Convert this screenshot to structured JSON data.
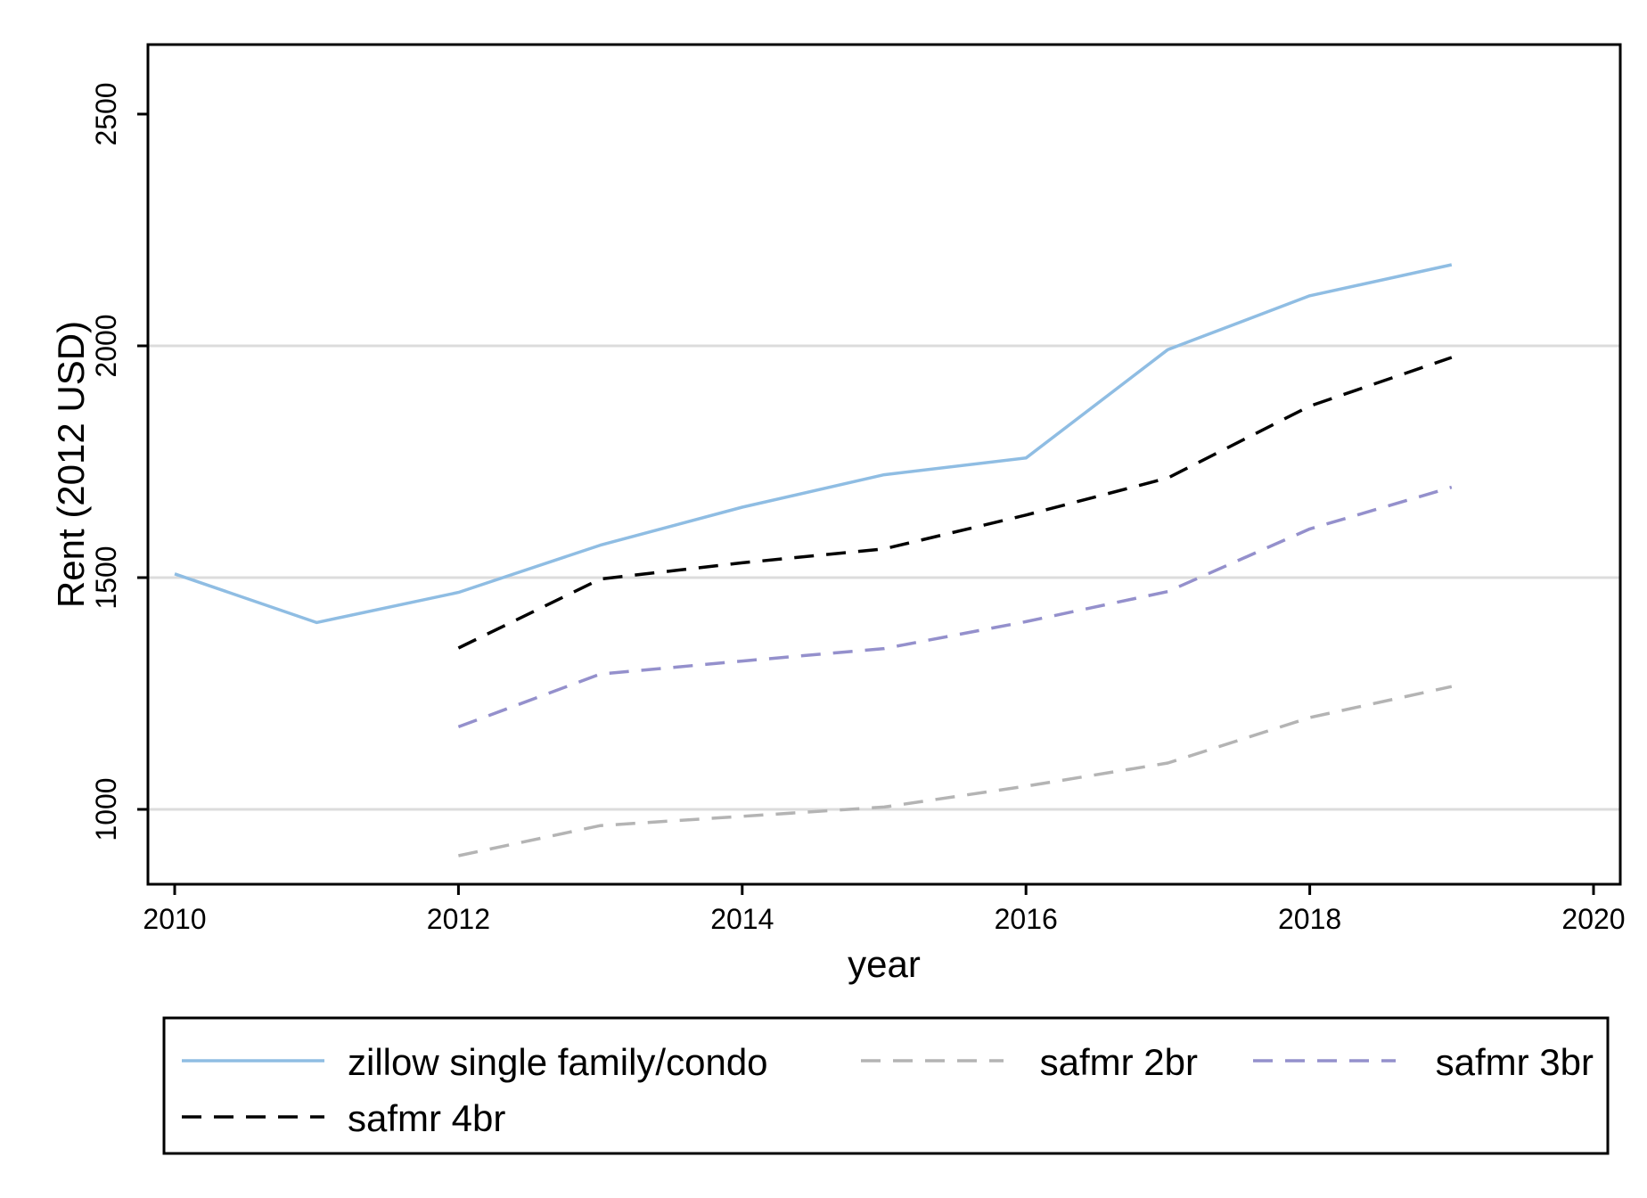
{
  "chart_data": {
    "type": "line",
    "title": "",
    "xlabel": "year",
    "ylabel": "Rent (2012 USD)",
    "xlim": [
      2010,
      2020
    ],
    "ylim": [
      850,
      2550
    ],
    "xticks": [
      2010,
      2012,
      2014,
      2016,
      2018,
      2020
    ],
    "yticks": [
      1000,
      1500,
      2000,
      2500
    ],
    "grid": "horizontal",
    "legend_position": "bottom",
    "series": [
      {
        "name": "zillow single family/condo",
        "color": "#8fbde3",
        "dash": "solid",
        "x": [
          2010,
          2011,
          2012,
          2013,
          2014,
          2015,
          2016,
          2017,
          2018,
          2019
        ],
        "y": [
          1508,
          1403,
          1468,
          1570,
          1652,
          1722,
          1758,
          1992,
          2108,
          2175
        ]
      },
      {
        "name": "safmr 2br",
        "color": "#b4b4b4",
        "dash": "dashed",
        "x": [
          2012,
          2013,
          2014,
          2015,
          2016,
          2017,
          2018,
          2019
        ],
        "y": [
          900,
          965,
          985,
          1005,
          1050,
          1100,
          1198,
          1265
        ]
      },
      {
        "name": "safmr 3br",
        "color": "#9490cc",
        "dash": "dashed",
        "x": [
          2012,
          2013,
          2014,
          2015,
          2016,
          2017,
          2018,
          2019
        ],
        "y": [
          1178,
          1292,
          1320,
          1347,
          1405,
          1470,
          1605,
          1695
        ]
      },
      {
        "name": "safmr 4br",
        "color": "#000000",
        "dash": "dashed",
        "x": [
          2012,
          2013,
          2014,
          2015,
          2016,
          2017,
          2018,
          2019
        ],
        "y": [
          1348,
          1497,
          1532,
          1562,
          1635,
          1715,
          1870,
          1975
        ]
      }
    ]
  }
}
